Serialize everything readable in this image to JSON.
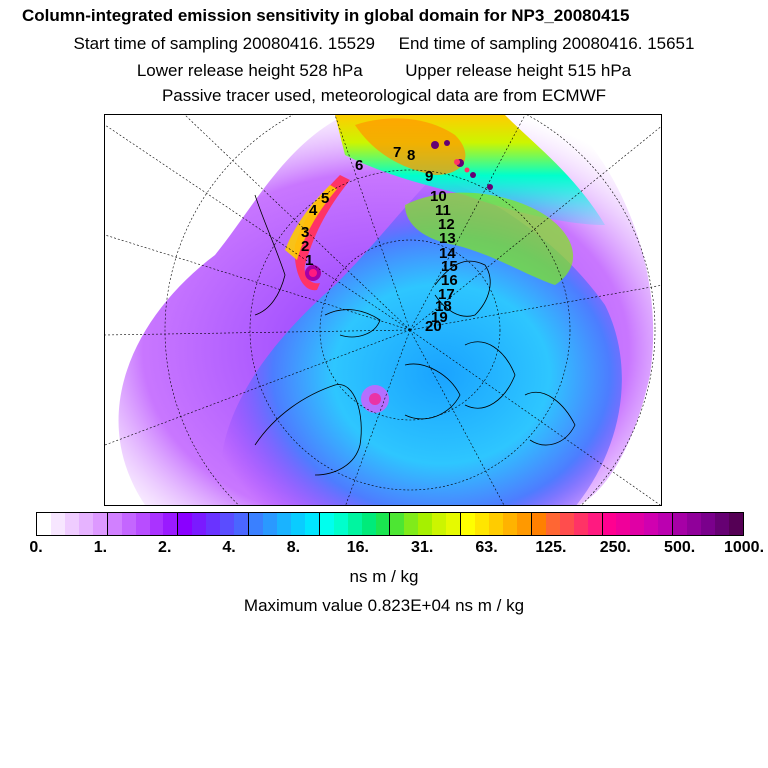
{
  "header": {
    "title": "Column-integrated emission sensitivity in global domain for NP3_20080415",
    "start_label": "Start time of sampling 20080416. 15529",
    "end_label": "End time of sampling 20080416. 15651",
    "lower_release": "Lower release height  528 hPa",
    "upper_release": "Upper release height  515 hPa",
    "tracer_note": "Passive tracer used, meteorological data are from ECMWF"
  },
  "map": {
    "track_labels": [
      "1",
      "2",
      "3",
      "4",
      "5",
      "6",
      "7",
      "8",
      "9",
      "10",
      "11",
      "12",
      "13",
      "14",
      "15",
      "16",
      "17",
      "18",
      "19",
      "20"
    ],
    "max_marker_color": "#ff2b7a",
    "track_color": "#000000"
  },
  "colorbar": {
    "colors": [
      "#ffffff",
      "#f7e6ff",
      "#efccff",
      "#e6b3ff",
      "#dd99ff",
      "#d180ff",
      "#c466ff",
      "#b84dff",
      "#aa33ff",
      "#9a1aff",
      "#8a00ff",
      "#7a1aff",
      "#6a33ff",
      "#5a4dff",
      "#4a66ff",
      "#3a80ff",
      "#2a99ff",
      "#1ab3ff",
      "#0accff",
      "#00e6ff",
      "#00ffee",
      "#00ffcc",
      "#00f5a0",
      "#00eb7a",
      "#1ae650",
      "#4de633",
      "#80eb1a",
      "#a6f000",
      "#ccf500",
      "#e6fa00",
      "#ffff00",
      "#ffe600",
      "#ffcc00",
      "#ffb300",
      "#ff9900",
      "#ff8000",
      "#ff6633",
      "#ff4d4d",
      "#ff3366",
      "#ff1a80",
      "#ff0090",
      "#f0009a",
      "#e000a5",
      "#d000b0",
      "#bb00b0",
      "#a600a6",
      "#90009a",
      "#7a008c",
      "#660073",
      "#550055"
    ],
    "tick_labels": [
      "0.",
      "1.",
      "2.",
      "4.",
      "8.",
      "16.",
      "31.",
      "63.",
      "125.",
      "250.",
      "500.",
      "1000."
    ],
    "unit": "ns m / kg",
    "max_value": "Maximum value  0.823E+04 ns m / kg"
  }
}
